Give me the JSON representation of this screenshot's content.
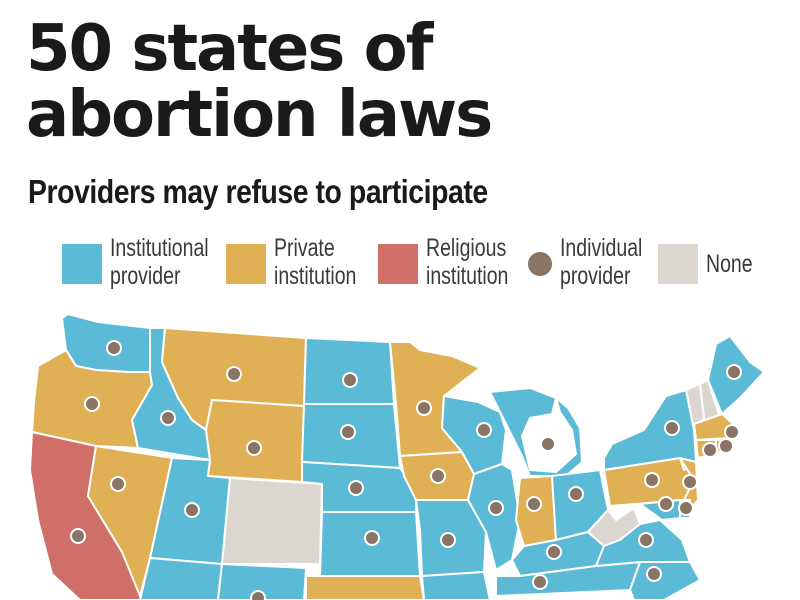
{
  "title_line1": "50 states of",
  "title_line2": "abortion laws",
  "subtitle": "Providers may refuse to participate",
  "legend": [
    {
      "line1": "Institutional",
      "line2": "provider",
      "color": "#5bbad5",
      "shape": "square"
    },
    {
      "line1": "Private",
      "line2": "institution",
      "color": "#e0b054",
      "shape": "square"
    },
    {
      "line1": "Religious",
      "line2": "institution",
      "color": "#d06e68",
      "shape": "square"
    },
    {
      "line1": "Individual",
      "line2": "provider",
      "color": "#8a7565",
      "shape": "circle"
    },
    {
      "line1": "None",
      "line2": "",
      "color": "#dcd6d1",
      "shape": "square"
    }
  ],
  "colors": {
    "institutional": "#5bbad5",
    "private": "#e0b054",
    "religious": "#d06e68",
    "individual": "#8a7565",
    "none": "#dcd6d1"
  },
  "states": [
    {
      "id": "WA",
      "category": "institutional",
      "individual_provider": true
    },
    {
      "id": "OR",
      "category": "private",
      "individual_provider": true
    },
    {
      "id": "CA",
      "category": "religious",
      "individual_provider": true
    },
    {
      "id": "ID",
      "category": "institutional",
      "individual_provider": true
    },
    {
      "id": "NV",
      "category": "private",
      "individual_provider": true
    },
    {
      "id": "MT",
      "category": "private",
      "individual_provider": true
    },
    {
      "id": "WY",
      "category": "private",
      "individual_provider": true
    },
    {
      "id": "UT",
      "category": "institutional",
      "individual_provider": true
    },
    {
      "id": "CO",
      "category": "none",
      "individual_provider": false
    },
    {
      "id": "AZ",
      "category": "institutional",
      "individual_provider": false
    },
    {
      "id": "NM",
      "category": "institutional",
      "individual_provider": true
    },
    {
      "id": "ND",
      "category": "institutional",
      "individual_provider": true
    },
    {
      "id": "SD",
      "category": "institutional",
      "individual_provider": true
    },
    {
      "id": "NE",
      "category": "institutional",
      "individual_provider": true
    },
    {
      "id": "KS",
      "category": "institutional",
      "individual_provider": true
    },
    {
      "id": "OK",
      "category": "private",
      "individual_provider": false
    },
    {
      "id": "MN",
      "category": "private",
      "individual_provider": true
    },
    {
      "id": "IA",
      "category": "private",
      "individual_provider": true
    },
    {
      "id": "MO",
      "category": "institutional",
      "individual_provider": true
    },
    {
      "id": "AR",
      "category": "institutional",
      "individual_provider": true
    },
    {
      "id": "WI",
      "category": "institutional",
      "individual_provider": true
    },
    {
      "id": "IL",
      "category": "institutional",
      "individual_provider": true
    },
    {
      "id": "MI",
      "category": "institutional",
      "individual_provider": true
    },
    {
      "id": "IN",
      "category": "private",
      "individual_provider": true
    },
    {
      "id": "OH",
      "category": "institutional",
      "individual_provider": true
    },
    {
      "id": "KY",
      "category": "institutional",
      "individual_provider": true
    },
    {
      "id": "TN",
      "category": "institutional",
      "individual_provider": true
    },
    {
      "id": "WV",
      "category": "none",
      "individual_provider": false
    },
    {
      "id": "VA",
      "category": "institutional",
      "individual_provider": true
    },
    {
      "id": "NC",
      "category": "institutional",
      "individual_provider": true
    },
    {
      "id": "SC",
      "category": "private",
      "individual_provider": false
    },
    {
      "id": "PA",
      "category": "private",
      "individual_provider": true
    },
    {
      "id": "NY",
      "category": "institutional",
      "individual_provider": true
    },
    {
      "id": "NJ",
      "category": "private",
      "individual_provider": true
    },
    {
      "id": "DE",
      "category": "institutional",
      "individual_provider": true
    },
    {
      "id": "MD",
      "category": "institutional",
      "individual_provider": true
    },
    {
      "id": "VT",
      "category": "none",
      "individual_provider": false
    },
    {
      "id": "NH",
      "category": "none",
      "individual_provider": false
    },
    {
      "id": "ME",
      "category": "institutional",
      "individual_provider": true
    },
    {
      "id": "MA",
      "category": "private",
      "individual_provider": true
    },
    {
      "id": "CT",
      "category": "private",
      "individual_provider": true
    },
    {
      "id": "RI",
      "category": "private",
      "individual_provider": true
    }
  ]
}
